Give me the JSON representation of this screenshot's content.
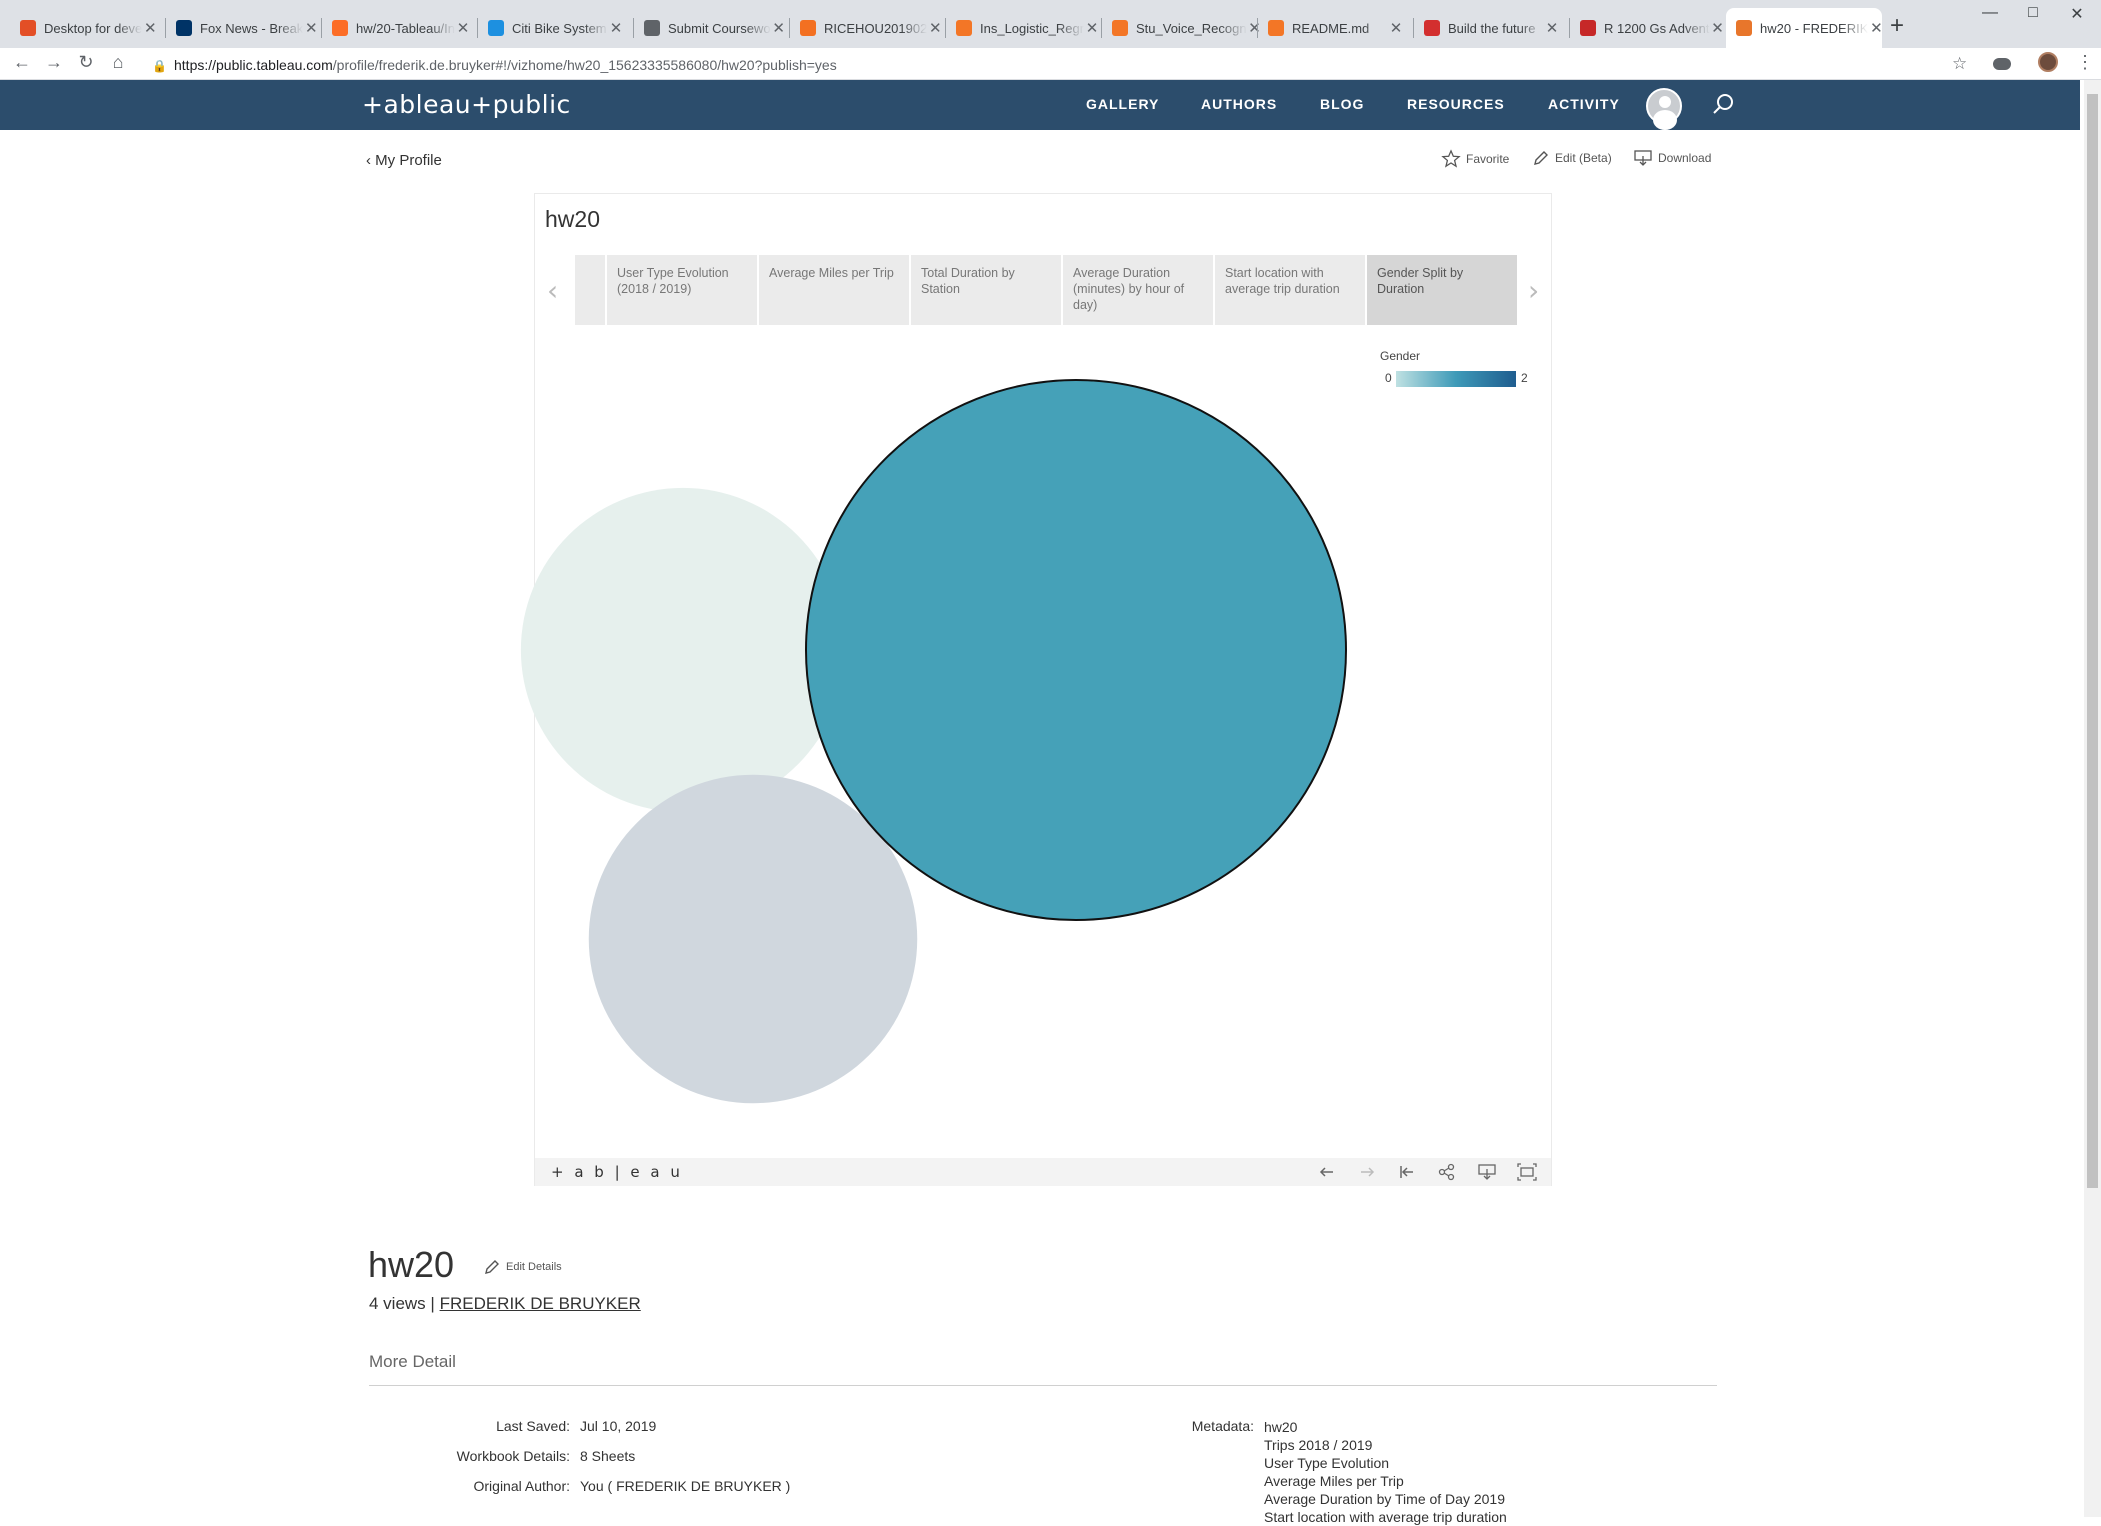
{
  "browser": {
    "tabs": [
      {
        "title": "Desktop for deve",
        "color": "#e34f26",
        "icon": "ubuntu-icon"
      },
      {
        "title": "Fox News - Break",
        "color": "#003366",
        "icon": "foxnews-icon"
      },
      {
        "title": "hw/20-Tableau/In",
        "color": "#fc6d26",
        "icon": "gitlab-icon"
      },
      {
        "title": "Citi Bike System",
        "color": "#1d90e0",
        "icon": "bike-icon"
      },
      {
        "title": "Submit Coursewo",
        "color": "#5f6368",
        "icon": "globe-icon"
      },
      {
        "title": "RICEHOU201902",
        "color": "#f37021",
        "icon": "loading-icon"
      },
      {
        "title": "Ins_Logistic_Regr",
        "color": "#f37626",
        "icon": "jupyter-icon"
      },
      {
        "title": "Stu_Voice_Recogn",
        "color": "#f37626",
        "icon": "jupyter-icon"
      },
      {
        "title": "README.md",
        "color": "#f37626",
        "icon": "file-icon"
      },
      {
        "title": "Build the future",
        "color": "#d32f2f",
        "icon": "flag-icon"
      },
      {
        "title": "R 1200 Gs Advent",
        "color": "#c62828",
        "icon": "bmw-icon"
      },
      {
        "title": "hw20 - FREDERIK",
        "color": "#e8762b",
        "icon": "tableau-icon"
      }
    ],
    "new_tab": "+",
    "url_host": "https://public.tableau.com",
    "url_path": "/profile/frederik.de.bruyker#!/vizhome/hw20_15623335586080/hw20?publish=yes"
  },
  "header": {
    "brand": "+ableau+public",
    "nav": [
      "GALLERY",
      "AUTHORS",
      "BLOG",
      "RESOURCES",
      "ACTIVITY"
    ]
  },
  "page": {
    "back_label": "My Profile",
    "actions": {
      "favorite": "Favorite",
      "edit": "Edit (Beta)",
      "download": "Download"
    }
  },
  "viz": {
    "title": "hw20",
    "story_tabs": [
      "User Type Evolution (2018 / 2019)",
      "Average Miles per Trip",
      "Total Duration by Station",
      "Average Duration (minutes) by hour of day)",
      "Start location with average trip duration",
      "Gender Split by Duration"
    ],
    "active_story_tab": 5,
    "legend": {
      "title": "Gender",
      "min": "0",
      "max": "2"
    },
    "footer_logo": "+ a b | e a u"
  },
  "chart_data": {
    "type": "bubble",
    "legend": {
      "title": "Gender",
      "range": [
        0,
        2
      ]
    },
    "bubbles": [
      {
        "gender": 0,
        "relative_size": 0.38,
        "color": "#e6f0ed"
      },
      {
        "gender": 1,
        "relative_size": 1.0,
        "color": "#45a1b8",
        "highlighted": true
      },
      {
        "gender": 2,
        "relative_size": 0.39,
        "color": "#d0d7de"
      }
    ]
  },
  "details": {
    "title": "hw20",
    "edit_details": "Edit Details",
    "views": "4 views |",
    "author": "FREDERIK DE BRUYKER",
    "more_detail": "More Detail",
    "last_saved_label": "Last Saved:",
    "last_saved": "Jul 10, 2019",
    "workbook_label": "Workbook Details:",
    "workbook": "8 Sheets",
    "original_author_label": "Original Author:",
    "original_author": "You ( FREDERIK DE BRUYKER )",
    "metadata_label": "Metadata:",
    "metadata": [
      "hw20",
      "Trips 2018 / 2019",
      "User Type Evolution",
      "Average Miles per Trip",
      "Average Duration by Time of Day 2019",
      "Start location with average trip duration"
    ]
  }
}
